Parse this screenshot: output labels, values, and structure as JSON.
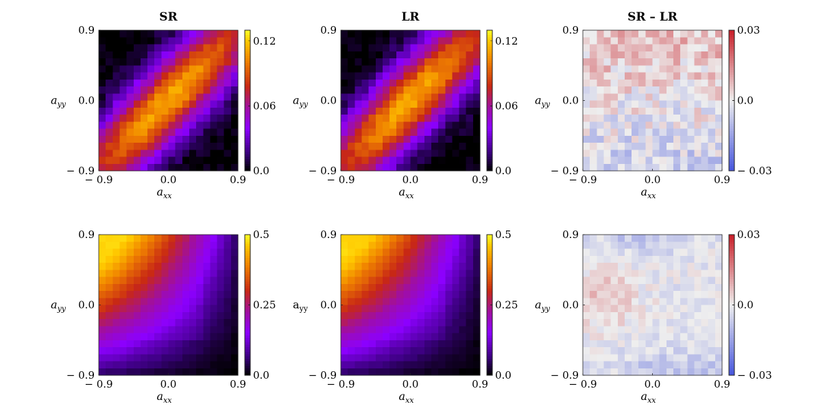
{
  "chart_data": [
    {
      "type": "heatmap",
      "title": "SR",
      "xlabel": "a_xx",
      "ylabel": "a_yy",
      "x_ticks": [
        "− 0.9",
        "0.0",
        "0.9"
      ],
      "y_ticks": [
        "0.9",
        "0.0",
        "− 0.9"
      ],
      "xlim": [
        -0.9,
        0.9
      ],
      "ylim": [
        -0.9,
        0.9
      ],
      "grid_size": 20,
      "colormap": "gnuplot",
      "zlim": [
        0.0,
        0.13
      ],
      "colorbar_ticks": [
        {
          "value": 0.12,
          "label": "0.12"
        },
        {
          "value": 0.06,
          "label": "0.06"
        },
        {
          "value": 0.0,
          "label": "0.0"
        }
      ],
      "pattern": "diagonal-band",
      "peak": 0.11
    },
    {
      "type": "heatmap",
      "title": "LR",
      "xlabel": "a_xx",
      "ylabel": "a_yy",
      "x_ticks": [
        "− 0.9",
        "0.0",
        "0.9"
      ],
      "y_ticks": [
        "0.9",
        "0.0",
        "− 0.9"
      ],
      "xlim": [
        -0.9,
        0.9
      ],
      "ylim": [
        -0.9,
        0.9
      ],
      "grid_size": 20,
      "colormap": "gnuplot",
      "zlim": [
        0.0,
        0.13
      ],
      "colorbar_ticks": [
        {
          "value": 0.12,
          "label": "0.12"
        },
        {
          "value": 0.06,
          "label": "0.06"
        },
        {
          "value": 0.0,
          "label": "0.0"
        }
      ],
      "pattern": "diagonal-band",
      "peak": 0.11
    },
    {
      "type": "heatmap",
      "title": "SR – LR",
      "xlabel": "a_xx",
      "ylabel": "a_yy",
      "x_ticks": [
        "− 0.9",
        "0.0",
        "0.9"
      ],
      "y_ticks": [
        "0.9",
        "0.0",
        "− 0.9"
      ],
      "xlim": [
        -0.9,
        0.9
      ],
      "ylim": [
        -0.9,
        0.9
      ],
      "grid_size": 20,
      "colormap": "coolwarm",
      "zlim": [
        -0.03,
        0.03
      ],
      "colorbar_ticks": [
        {
          "value": 0.03,
          "label": "0.03"
        },
        {
          "value": 0.0,
          "label": "0.0"
        },
        {
          "value": -0.03,
          "label": "− 0.03"
        }
      ],
      "pattern": "diff-top-positive",
      "peak": 0.012
    },
    {
      "type": "heatmap",
      "title": "",
      "xlabel": "a_xx",
      "ylabel": "a_yy",
      "x_ticks": [
        "− 0.9",
        "0.0",
        "0.9"
      ],
      "y_ticks": [
        "0.9",
        "0.0",
        "− 0.9"
      ],
      "xlim": [
        -0.9,
        0.9
      ],
      "ylim": [
        -0.9,
        0.9
      ],
      "grid_size": 20,
      "colormap": "gnuplot",
      "zlim": [
        0.0,
        0.5
      ],
      "colorbar_ticks": [
        {
          "value": 0.5,
          "label": "0.5"
        },
        {
          "value": 0.25,
          "label": "0.25"
        },
        {
          "value": 0.0,
          "label": "0.0"
        }
      ],
      "pattern": "corner-top-left",
      "peak": 0.45
    },
    {
      "type": "heatmap",
      "title": "",
      "xlabel": "a_xx",
      "ylabel": "a_yy",
      "ylabel_plain": true,
      "x_ticks": [
        "− 0.9",
        "0.0",
        "0.9"
      ],
      "y_ticks": [
        "0.9",
        "0.0",
        "− 0.9"
      ],
      "xlim": [
        -0.9,
        0.9
      ],
      "ylim": [
        -0.9,
        0.9
      ],
      "grid_size": 20,
      "colormap": "gnuplot",
      "zlim": [
        0.0,
        0.5
      ],
      "colorbar_ticks": [
        {
          "value": 0.5,
          "label": "0.5"
        },
        {
          "value": 0.25,
          "label": "0.25"
        },
        {
          "value": 0.0,
          "label": "0.0"
        }
      ],
      "pattern": "corner-top-left",
      "peak": 0.45
    },
    {
      "type": "heatmap",
      "title": "",
      "xlabel": "a_xx",
      "ylabel": "a_yy",
      "x_ticks": [
        "− 0.9",
        "0.0",
        "0.9"
      ],
      "y_ticks": [
        "0.9",
        "0.0",
        "− 0.9"
      ],
      "xlim": [
        -0.9,
        0.9
      ],
      "ylim": [
        -0.9,
        0.9
      ],
      "grid_size": 20,
      "colormap": "coolwarm",
      "zlim": [
        -0.03,
        0.03
      ],
      "colorbar_ticks": [
        {
          "value": 0.03,
          "label": "0.03"
        },
        {
          "value": 0.0,
          "label": "0.0"
        },
        {
          "value": -0.03,
          "label": "− 0.03"
        }
      ],
      "pattern": "diff-left-positive",
      "peak": 0.012
    }
  ]
}
